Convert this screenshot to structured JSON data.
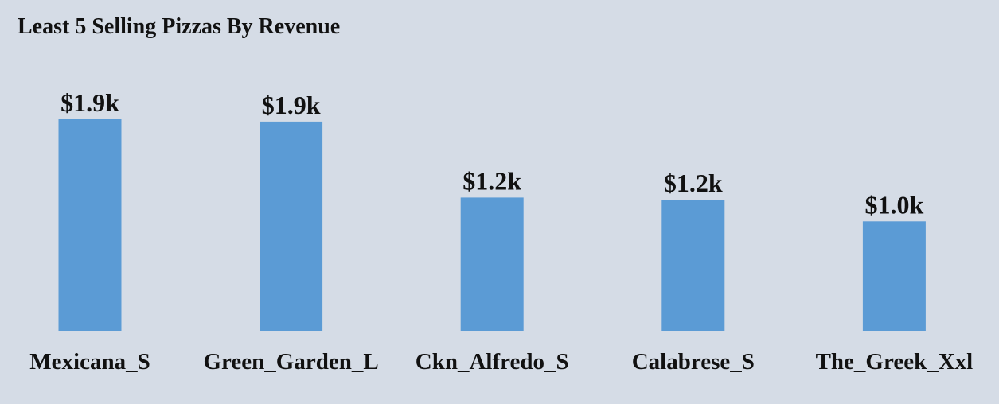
{
  "chart_data": {
    "type": "bar",
    "title": "Least 5 Selling Pizzas By Revenue",
    "categories": [
      "Mexicana_S",
      "Green_Garden_L",
      "Ckn_Alfredo_S",
      "Calabrese_S",
      "The_Greek_Xxl"
    ],
    "values": [
      1944,
      1923,
      1225,
      1206,
      1006
    ],
    "data_labels": [
      "$1.9k",
      "$1.9k",
      "$1.2k",
      "$1.2k",
      "$1.0k"
    ],
    "xlabel": "",
    "ylabel": "",
    "ylim": [
      0,
      1944
    ],
    "grid": false,
    "bar_color": "#5b9bd5",
    "background": "#d5dce6"
  }
}
